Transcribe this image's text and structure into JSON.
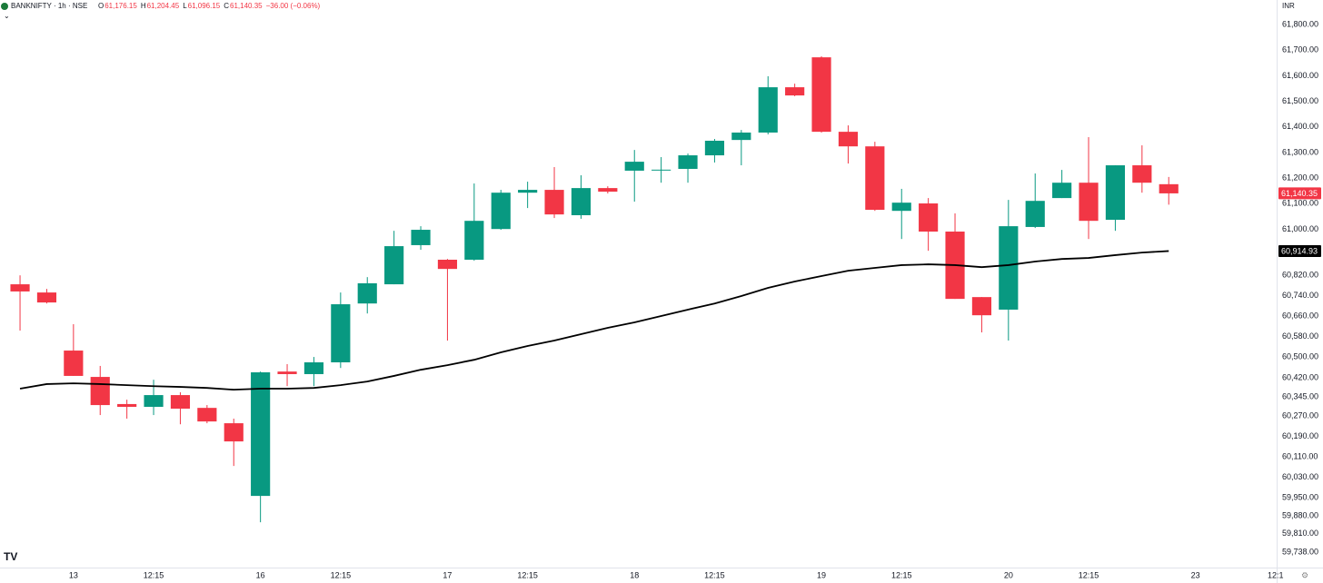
{
  "header": {
    "symbol": "BANKNIFTY · 1h · NSE",
    "ohlc": [
      {
        "label": "O",
        "value": "61,176.15"
      },
      {
        "label": "H",
        "value": "61,204.45"
      },
      {
        "label": "L",
        "value": "61,096.15"
      },
      {
        "label": "C",
        "value": "61,140.35"
      }
    ],
    "change": "−36.00 (−0.06%)",
    "currency": "INR"
  },
  "chart_data": {
    "type": "candlestick",
    "up_color": "#089981",
    "down_color": "#f23645",
    "candles": {
      "open": [
        60785,
        60753,
        60526,
        60423,
        60317,
        60306,
        60352,
        60302,
        60242,
        59958,
        60444,
        60434,
        60480,
        60710,
        60785,
        60938,
        60881,
        60881,
        61001,
        61143,
        61154,
        61055,
        61161,
        61229,
        61232,
        61236,
        61289,
        61349,
        61378,
        61555,
        61672,
        61381,
        61324,
        61072,
        61101,
        60991,
        60735,
        60686,
        61009,
        61122,
        61182,
        61037,
        61250,
        61176.15
      ],
      "high": [
        60820,
        60767,
        60629,
        60466,
        60334,
        60412,
        60363,
        60313,
        60260,
        60444,
        60473,
        60501,
        60753,
        60813,
        60994,
        61012,
        60884,
        61179,
        61154,
        61186,
        61243,
        61211,
        61168,
        61310,
        61282,
        61296,
        61353,
        61388,
        61598,
        61569,
        61676,
        61406,
        61342,
        61158,
        61122,
        61062,
        60735,
        61115,
        61218,
        61232,
        61360,
        61250,
        61328,
        61204.45
      ],
      "low": [
        60604,
        60710,
        60427,
        60274,
        60260,
        60274,
        60238,
        60242,
        60075,
        59855,
        60387,
        60387,
        60458,
        60671,
        60785,
        60920,
        60565,
        60877,
        60998,
        61083,
        61044,
        61041,
        61140,
        61108,
        61182,
        61182,
        61261,
        61250,
        61371,
        61520,
        61378,
        61257,
        61072,
        60962,
        60916,
        60728,
        60597,
        60565,
        61005,
        61122,
        60962,
        60994,
        61143,
        61096.15
      ],
      "close": [
        60757,
        60714,
        60427,
        60313,
        60306,
        60352,
        60299,
        60249,
        60171,
        60441,
        60434,
        60480,
        60707,
        60789,
        60934,
        60998,
        60845,
        61033,
        61143,
        61154,
        61058,
        61161,
        61147,
        61264,
        61233,
        61289,
        61346,
        61378,
        61555,
        61523,
        61381,
        61324,
        61076,
        61104,
        60991,
        60728,
        60664,
        61012,
        61111,
        61182,
        61033,
        61250,
        61182,
        61140.35
      ]
    },
    "ma": {
      "color": "#000000",
      "values": [
        60377,
        60395,
        60398,
        60395,
        60391,
        60387,
        60384,
        60380,
        60373,
        60377,
        60377,
        60380,
        60391,
        60405,
        60427,
        60451,
        60469,
        60490,
        60519,
        60544,
        60565,
        60590,
        60615,
        60636,
        60661,
        60686,
        60710,
        60739,
        60771,
        60796,
        60817,
        60838,
        60849,
        60860,
        60863,
        60860,
        60852,
        60860,
        60874,
        60884,
        60888,
        60899,
        60909,
        60914.93
      ]
    },
    "price_label": "61,140.35",
    "ma_label": "60,914.93",
    "ylim": [
      59678,
      61896
    ],
    "yticks": [
      {
        "value": 61800,
        "label": "61,800.00"
      },
      {
        "value": 61700,
        "label": "61,700.00"
      },
      {
        "value": 61600,
        "label": "61,600.00"
      },
      {
        "value": 61500,
        "label": "61,500.00"
      },
      {
        "value": 61400,
        "label": "61,400.00"
      },
      {
        "value": 61300,
        "label": "61,300.00"
      },
      {
        "value": 61200,
        "label": "61,200.00"
      },
      {
        "value": 61100,
        "label": "61,100.00"
      },
      {
        "value": 61000,
        "label": "61,000.00"
      },
      {
        "value": 60820,
        "label": "60,820.00"
      },
      {
        "value": 60740,
        "label": "60,740.00"
      },
      {
        "value": 60660,
        "label": "60,660.00"
      },
      {
        "value": 60580,
        "label": "60,580.00"
      },
      {
        "value": 60500,
        "label": "60,500.00"
      },
      {
        "value": 60420,
        "label": "60,420.00"
      },
      {
        "value": 60345,
        "label": "60,345.00"
      },
      {
        "value": 60270,
        "label": "60,270.00"
      },
      {
        "value": 60190,
        "label": "60,190.00"
      },
      {
        "value": 60110,
        "label": "60,110.00"
      },
      {
        "value": 60030,
        "label": "60,030.00"
      },
      {
        "value": 59950,
        "label": "59,950.00"
      },
      {
        "value": 59880,
        "label": "59,880.00"
      },
      {
        "value": 59810,
        "label": "59,810.00"
      },
      {
        "value": 59738,
        "label": "59,738.00"
      }
    ],
    "xlim": [
      -0.75,
      47.04
    ],
    "xticks": [
      {
        "value": 2,
        "label": "13"
      },
      {
        "value": 5,
        "label": "12:15"
      },
      {
        "value": 9,
        "label": "16"
      },
      {
        "value": 12,
        "label": "12:15"
      },
      {
        "value": 16,
        "label": "17"
      },
      {
        "value": 19,
        "label": "12:15"
      },
      {
        "value": 23,
        "label": "18"
      },
      {
        "value": 26,
        "label": "12:15"
      },
      {
        "value": 30,
        "label": "19"
      },
      {
        "value": 33,
        "label": "12:15"
      },
      {
        "value": 37,
        "label": "20"
      },
      {
        "value": 40,
        "label": "12:15"
      },
      {
        "value": 44,
        "label": "23"
      },
      {
        "value": 47,
        "label": "12:1"
      }
    ]
  }
}
